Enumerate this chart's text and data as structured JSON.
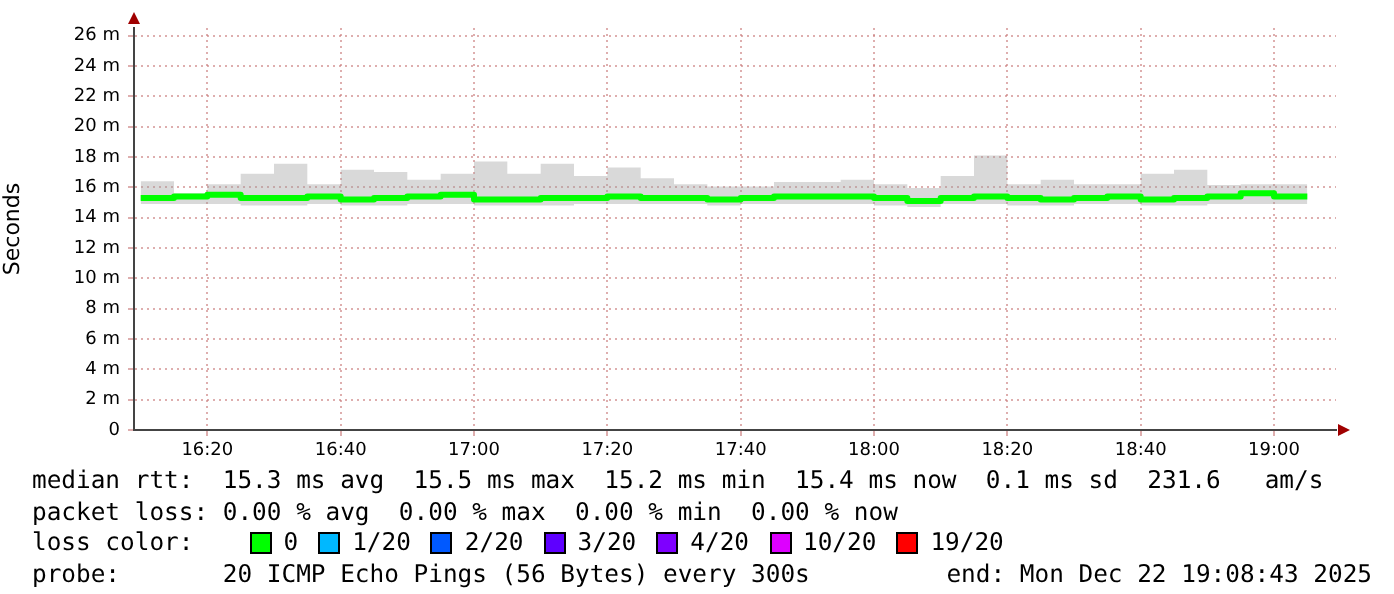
{
  "chart_data": {
    "type": "step",
    "ylabel": "Seconds",
    "x": [
      16.1667,
      16.25,
      16.3333,
      16.4167,
      16.5,
      16.5833,
      16.6667,
      16.75,
      16.8333,
      16.9167,
      17,
      17.0833,
      17.1667,
      17.25,
      17.3333,
      17.4167,
      17.5,
      17.5833,
      17.6667,
      17.75,
      17.8333,
      17.9167,
      18,
      18.0833,
      18.1667,
      18.25,
      18.3333,
      18.4167,
      18.5,
      18.5833,
      18.6667,
      18.75,
      18.8333,
      18.9167,
      19,
      19.0833
    ],
    "xlim": [
      16.15,
      19.155
    ],
    "xticks": [
      {
        "value": 16.3333,
        "label": "16:20"
      },
      {
        "value": 16.6667,
        "label": "16:40"
      },
      {
        "value": 17,
        "label": "17:00"
      },
      {
        "value": 17.3333,
        "label": "17:20"
      },
      {
        "value": 17.6667,
        "label": "17:40"
      },
      {
        "value": 18,
        "label": "18:00"
      },
      {
        "value": 18.3333,
        "label": "18:20"
      },
      {
        "value": 18.6667,
        "label": "18:40"
      },
      {
        "value": 19,
        "label": "19:00"
      }
    ],
    "ylim": [
      0,
      26.5
    ],
    "yticks": [
      {
        "value": 0,
        "label": "0"
      },
      {
        "value": 2,
        "label": "2 m"
      },
      {
        "value": 4,
        "label": "4 m"
      },
      {
        "value": 6,
        "label": "6 m"
      },
      {
        "value": 8,
        "label": "8 m"
      },
      {
        "value": 10,
        "label": "10 m"
      },
      {
        "value": 12,
        "label": "12 m"
      },
      {
        "value": 14,
        "label": "14 m"
      },
      {
        "value": 16,
        "label": "16 m"
      },
      {
        "value": 18,
        "label": "18 m"
      },
      {
        "value": 20,
        "label": "20 m"
      },
      {
        "value": 22,
        "label": "22 m"
      },
      {
        "value": 24,
        "label": "24 m"
      },
      {
        "value": 26,
        "label": "26 m"
      }
    ],
    "grid": true,
    "legend": "bottom",
    "series": [
      {
        "name": "0",
        "color": "#00ff00",
        "values": [
          15.3,
          15.4,
          15.5,
          15.3,
          15.3,
          15.4,
          15.2,
          15.3,
          15.4,
          15.5,
          15.2,
          15.2,
          15.3,
          15.3,
          15.4,
          15.3,
          15.3,
          15.2,
          15.3,
          15.4,
          15.4,
          15.4,
          15.3,
          15.1,
          15.3,
          15.4,
          15.3,
          15.2,
          15.3,
          15.4,
          15.2,
          15.3,
          15.4,
          15.6,
          15.4,
          15.4
        ],
        "lower": [
          14.9,
          14.9,
          14.9,
          14.8,
          14.8,
          14.9,
          14.8,
          14.8,
          14.9,
          14.9,
          14.8,
          14.8,
          14.8,
          14.9,
          14.9,
          14.9,
          14.9,
          14.8,
          14.9,
          14.9,
          14.9,
          14.9,
          14.8,
          14.7,
          14.9,
          14.9,
          14.8,
          14.8,
          14.9,
          14.9,
          14.8,
          14.8,
          14.9,
          14.9,
          14.9,
          14.9
        ],
        "upper": [
          16.4,
          15.6,
          16.2,
          16.9,
          17.55,
          16.2,
          17.15,
          17.0,
          16.5,
          16.9,
          17.7,
          16.9,
          17.55,
          16.75,
          17.3,
          16.6,
          16.2,
          16.05,
          16.05,
          16.35,
          16.35,
          16.5,
          16.2,
          15.95,
          16.75,
          18.1,
          16.2,
          16.5,
          16.2,
          16.2,
          16.9,
          17.15,
          16.15,
          16.2,
          16.2,
          16.2
        ]
      },
      {
        "name": "1/20",
        "color": "#00b8ff",
        "values": [
          null,
          null,
          null,
          null,
          null,
          null,
          null,
          null,
          null,
          null,
          null,
          null,
          null,
          null,
          null,
          null,
          null,
          null,
          null,
          null,
          null,
          null,
          null,
          null,
          null,
          null,
          null,
          null,
          null,
          null,
          null,
          null,
          null,
          null,
          null,
          null
        ]
      },
      {
        "name": "2/20",
        "color": "#0059ff",
        "values": [
          null,
          null,
          null,
          null,
          null,
          null,
          null,
          null,
          null,
          null,
          null,
          null,
          null,
          null,
          null,
          null,
          null,
          null,
          null,
          null,
          null,
          null,
          null,
          null,
          null,
          null,
          null,
          null,
          null,
          null,
          null,
          null,
          null,
          null,
          null,
          null
        ]
      },
      {
        "name": "3/20",
        "color": "#5e00ff",
        "values": [
          null,
          null,
          null,
          null,
          null,
          null,
          null,
          null,
          null,
          null,
          null,
          null,
          null,
          null,
          null,
          null,
          null,
          null,
          null,
          null,
          null,
          null,
          null,
          null,
          null,
          null,
          null,
          null,
          null,
          null,
          null,
          null,
          null,
          null,
          null,
          null
        ]
      },
      {
        "name": "4/20",
        "color": "#7e00ff",
        "values": [
          null,
          null,
          null,
          null,
          null,
          null,
          null,
          null,
          null,
          null,
          null,
          null,
          null,
          null,
          null,
          null,
          null,
          null,
          null,
          null,
          null,
          null,
          null,
          null,
          null,
          null,
          null,
          null,
          null,
          null,
          null,
          null,
          null,
          null,
          null,
          null
        ]
      },
      {
        "name": "10/20",
        "color": "#dd00ff",
        "values": [
          null,
          null,
          null,
          null,
          null,
          null,
          null,
          null,
          null,
          null,
          null,
          null,
          null,
          null,
          null,
          null,
          null,
          null,
          null,
          null,
          null,
          null,
          null,
          null,
          null,
          null,
          null,
          null,
          null,
          null,
          null,
          null,
          null,
          null,
          null,
          null
        ]
      },
      {
        "name": "19/20",
        "color": "#ff0000",
        "values": [
          null,
          null,
          null,
          null,
          null,
          null,
          null,
          null,
          null,
          null,
          null,
          null,
          null,
          null,
          null,
          null,
          null,
          null,
          null,
          null,
          null,
          null,
          null,
          null,
          null,
          null,
          null,
          null,
          null,
          null,
          null,
          null,
          null,
          null,
          null,
          null
        ]
      }
    ],
    "annotations": [
      "median rtt:  15.3 ms avg  15.5 ms max  15.2 ms min  15.4 ms now  0.1 ms sd  231.6   am/s",
      "packet loss: 0.00 % avg  0.00 % max  0.00 % min  0.00 % now",
      "loss color:",
      "probe:       20 ICMP Echo Pings (56 Bytes) every 300s",
      "end: Mon Dec 22 19:08:43 2025"
    ]
  }
}
